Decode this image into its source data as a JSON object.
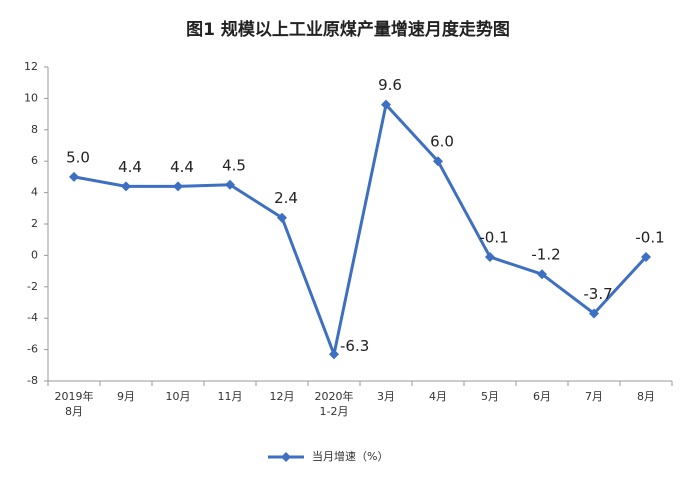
{
  "chart_data": {
    "type": "line",
    "title": "图1  规模以上工业原煤产量增速月度走势图",
    "categories": [
      "2019年\n8月",
      "9月",
      "10月",
      "11月",
      "12月",
      "2020年\n1-2月",
      "3月",
      "4月",
      "5月",
      "6月",
      "7月",
      "8月"
    ],
    "series": [
      {
        "name": "当月增速（%）",
        "color": "#3d6fc2",
        "values": [
          5.0,
          4.4,
          4.4,
          4.5,
          2.4,
          -6.3,
          9.6,
          6.0,
          -0.1,
          -1.2,
          -3.7,
          -0.1
        ],
        "value_labels": [
          "5.0",
          "4.4",
          "4.4",
          "4.5",
          "2.4",
          "-6.3",
          "9.6",
          "6.0",
          "-0.1",
          "-1.2",
          "-3.7",
          "-0.1"
        ]
      }
    ],
    "ylim": [
      -8,
      12
    ],
    "yticks": [
      -8,
      -6,
      -4,
      -2,
      0,
      2,
      4,
      6,
      8,
      10,
      12
    ],
    "grid": false,
    "legend": "bottom"
  }
}
